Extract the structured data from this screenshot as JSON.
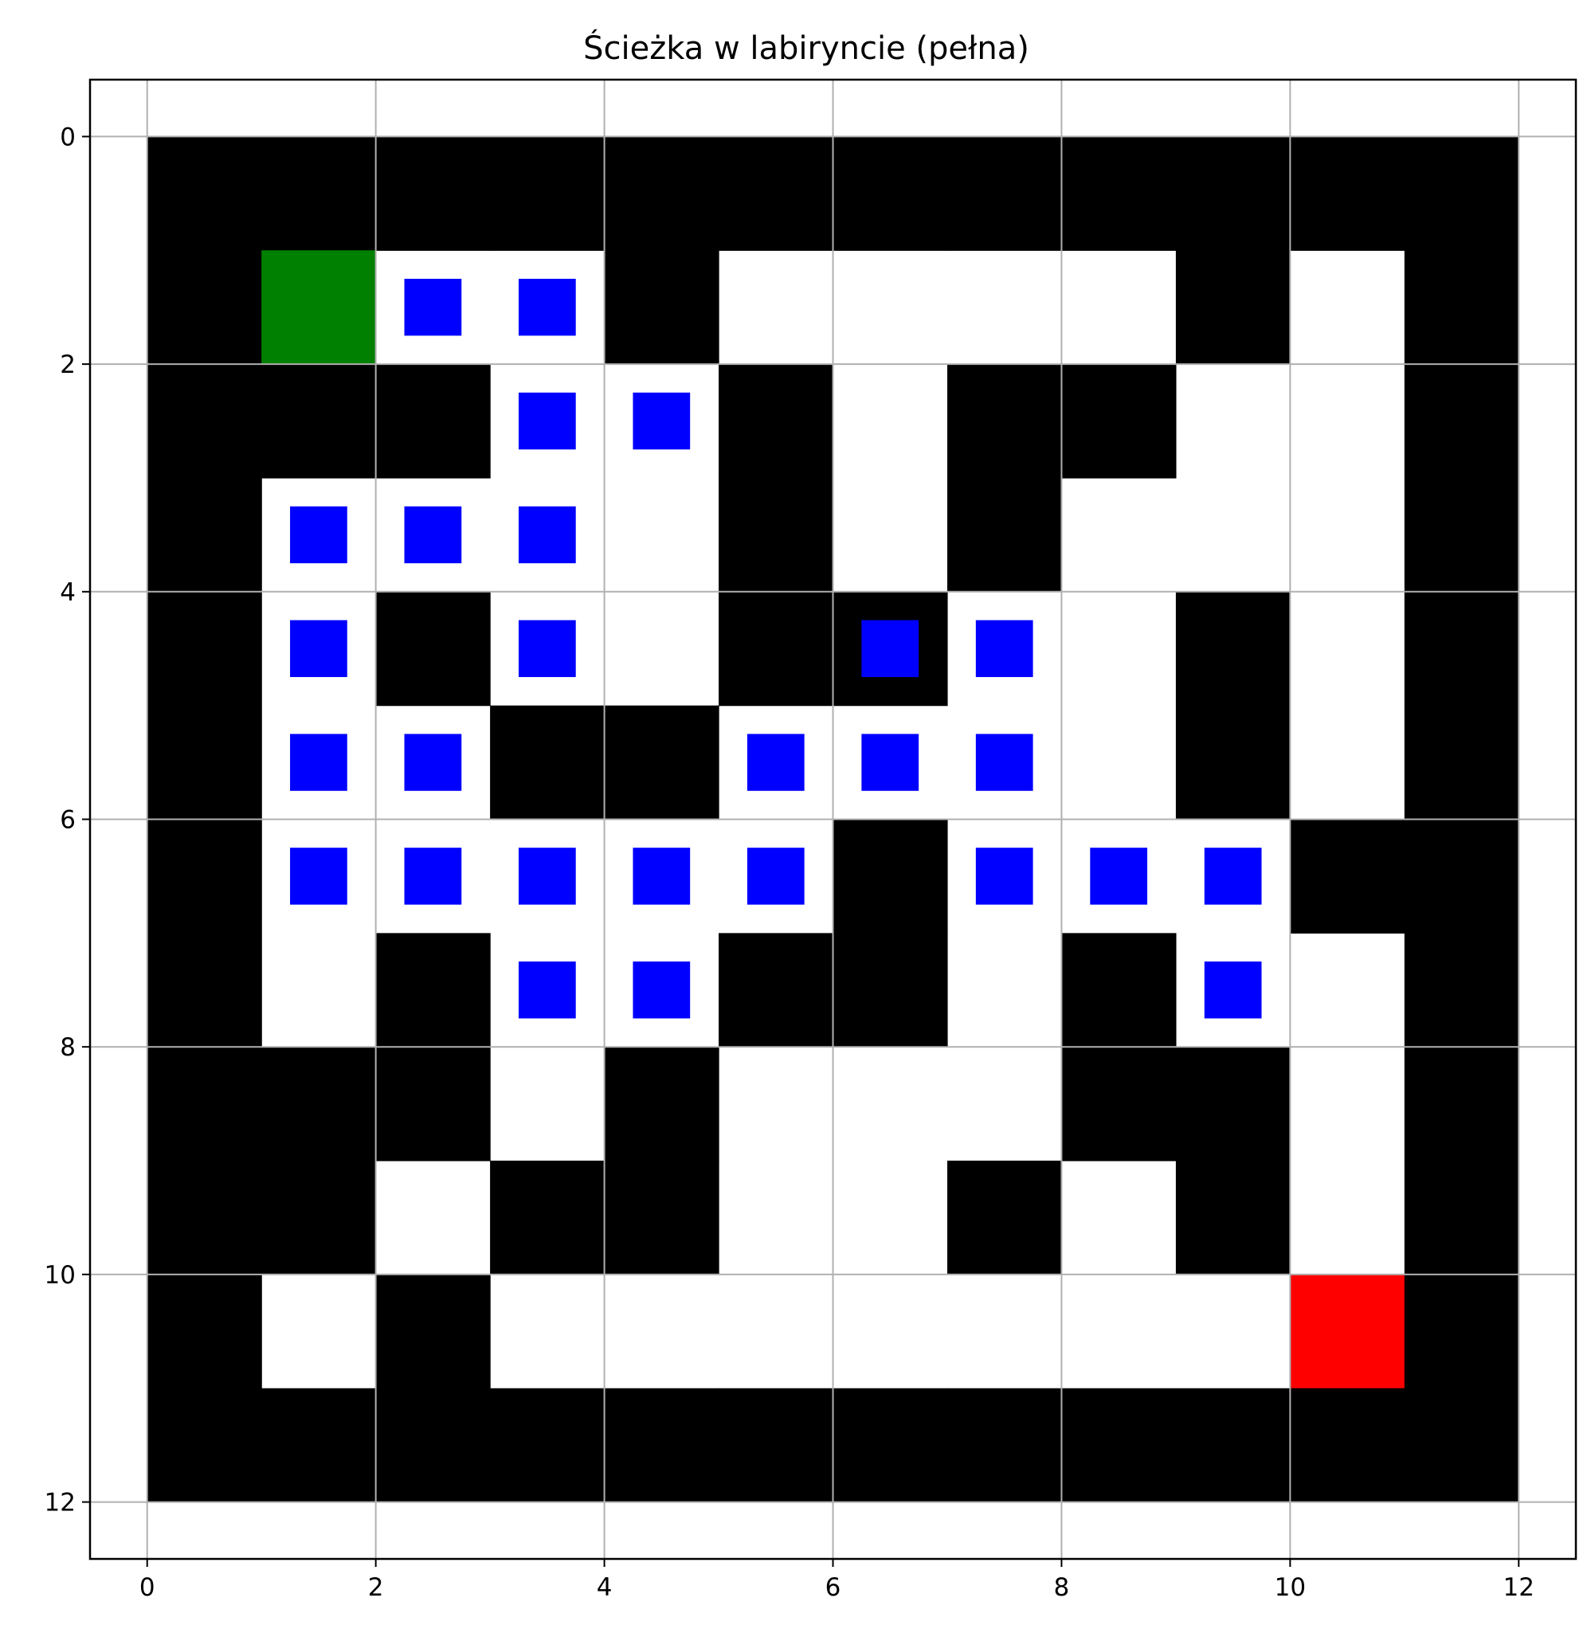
{
  "chart_data": {
    "type": "heatmap",
    "title": "Ścieżka w labiryncie (pełna)",
    "xlabel": "",
    "ylabel": "",
    "xlim": [
      -0.5,
      12.5
    ],
    "ylim": [
      12.5,
      -0.5
    ],
    "y_inverted": true,
    "xticks": [
      0,
      2,
      4,
      6,
      8,
      10,
      12
    ],
    "yticks": [
      0,
      2,
      4,
      6,
      8,
      10,
      12
    ],
    "grid": true,
    "colors": {
      "wall": "#000000",
      "open": "#ffffff",
      "start": "#008000",
      "end": "#ff0000",
      "path": "#0000ff",
      "grid": "#b0b0b0"
    },
    "maze_rows": [
      "111111111111",
      "100010000101",
      "111001011001",
      "100001010001",
      "101001100101",
      "100110000101",
      "100000100011",
      "101001101001",
      "111010001101",
      "110110010101",
      "101000000001",
      "111111111111"
    ],
    "start": [
      1,
      1
    ],
    "end": [
      10,
      10
    ],
    "path": [
      [
        2,
        1
      ],
      [
        3,
        1
      ],
      [
        3,
        2
      ],
      [
        4,
        2
      ],
      [
        1,
        3
      ],
      [
        2,
        3
      ],
      [
        3,
        3
      ],
      [
        1,
        4
      ],
      [
        3,
        4
      ],
      [
        6,
        4
      ],
      [
        7,
        4
      ],
      [
        1,
        5
      ],
      [
        2,
        5
      ],
      [
        5,
        5
      ],
      [
        6,
        5
      ],
      [
        7,
        5
      ],
      [
        1,
        6
      ],
      [
        2,
        6
      ],
      [
        3,
        6
      ],
      [
        4,
        6
      ],
      [
        5,
        6
      ],
      [
        7,
        6
      ],
      [
        8,
        6
      ],
      [
        9,
        6
      ],
      [
        3,
        7
      ],
      [
        4,
        7
      ],
      [
        9,
        7
      ]
    ]
  }
}
